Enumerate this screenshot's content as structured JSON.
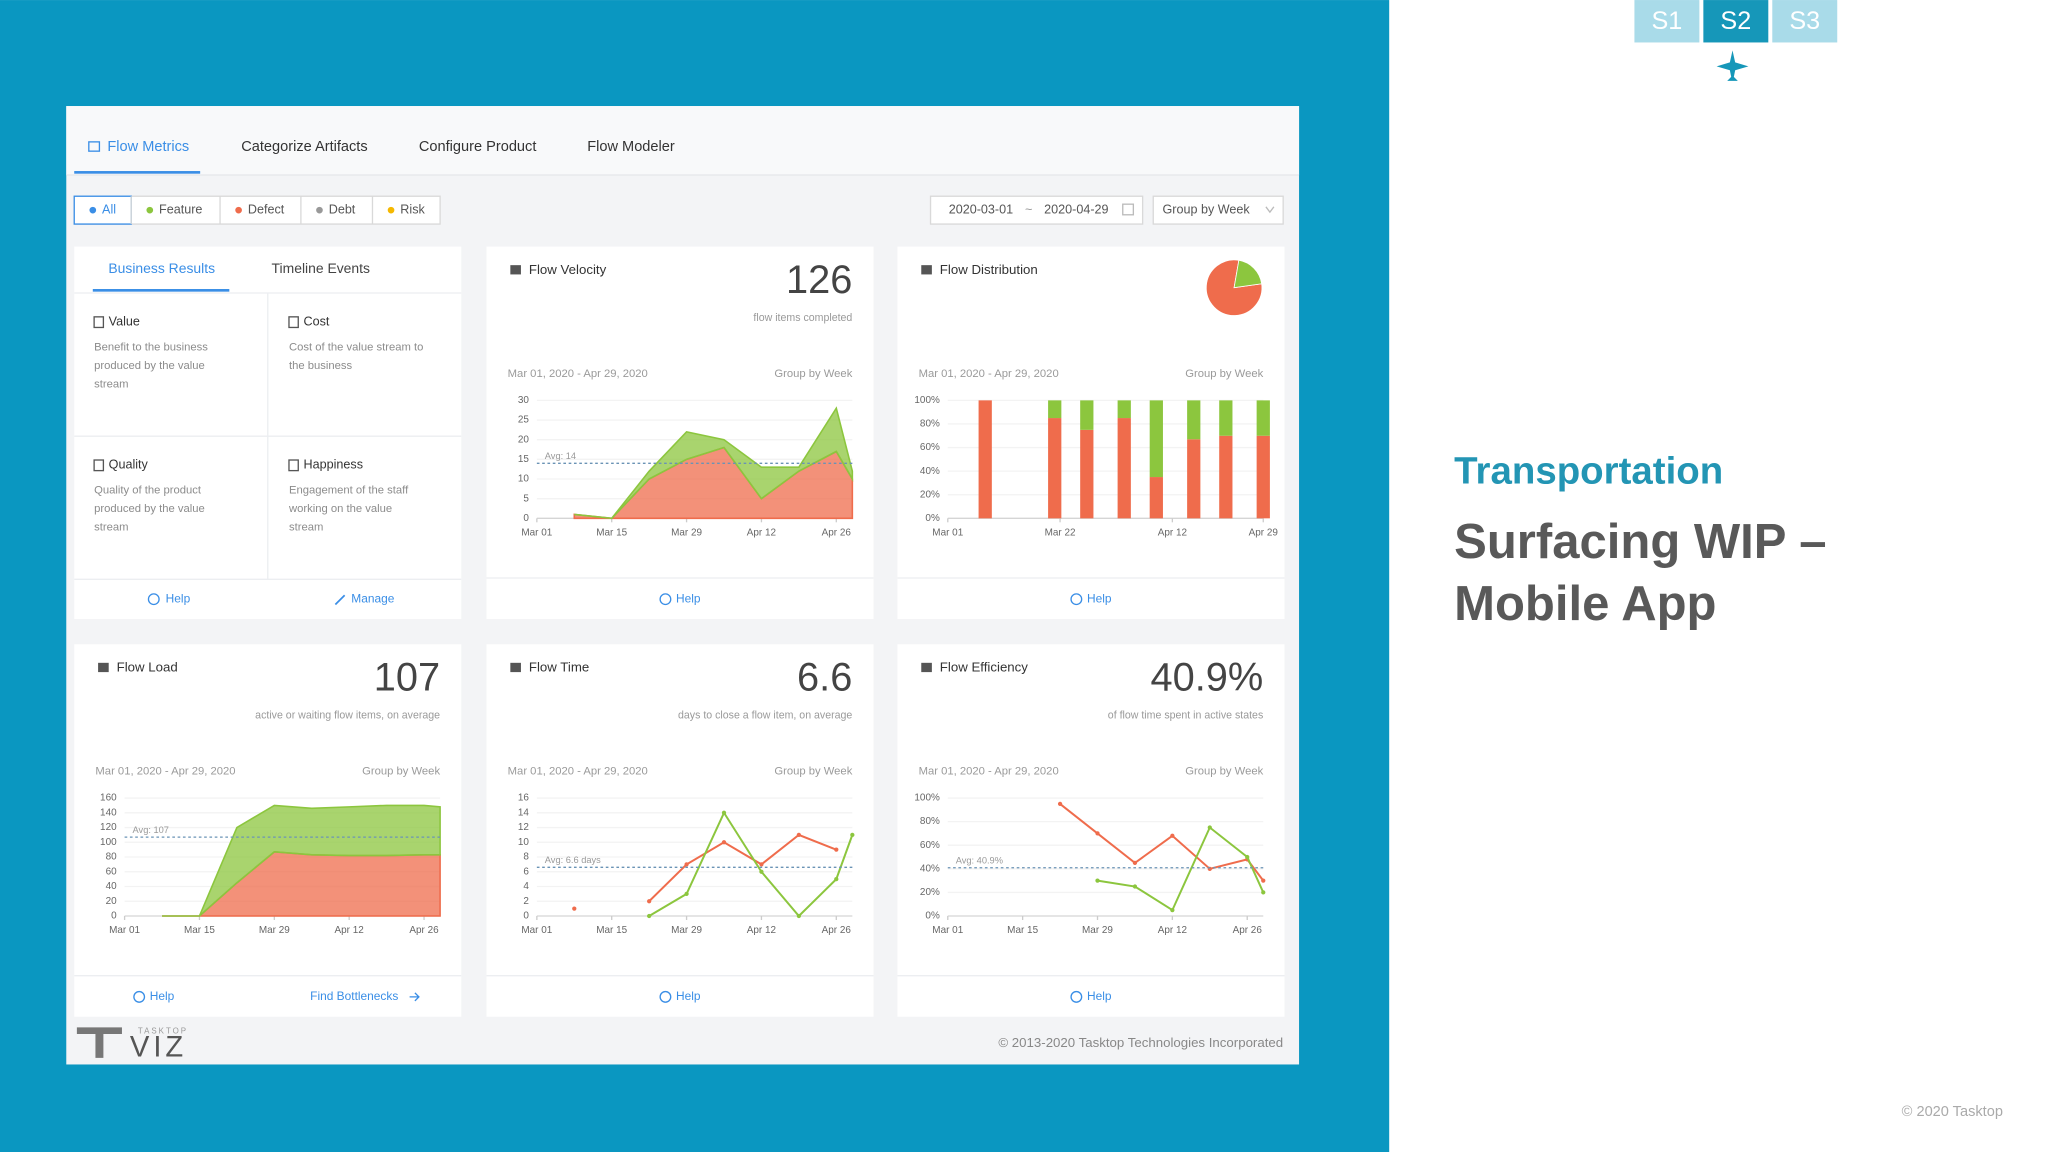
{
  "slide": {
    "tabs": [
      "S1",
      "S2",
      "S3"
    ],
    "section": "Transportation",
    "title_lines": [
      "Surfacing WIP –",
      "Mobile App"
    ],
    "footer": "© 2020 Tasktop"
  },
  "app": {
    "nav": [
      "Flow Metrics",
      "Categorize Artifacts",
      "Configure Product",
      "Flow Modeler"
    ],
    "filters": [
      "All",
      "Feature",
      "Defect",
      "Debt",
      "Risk"
    ],
    "date_from": "2020-03-01",
    "date_sep": "~",
    "date_to": "2020-04-29",
    "group_select": "Group by Week",
    "logo_small": "TASKTOP",
    "logo": "VIZ",
    "copyright": "© 2013-2020 Tasktop Technologies Incorporated"
  },
  "business": {
    "tabs": [
      "Business Results",
      "Timeline Events"
    ],
    "items": [
      {
        "title": "Value",
        "desc": [
          "Benefit to the business",
          "produced by the value",
          "stream"
        ]
      },
      {
        "title": "Cost",
        "desc": [
          "Cost of the value stream to",
          "the business"
        ]
      },
      {
        "title": "Quality",
        "desc": [
          "Quality of the product",
          "produced by the value",
          "stream"
        ]
      },
      {
        "title": "Happiness",
        "desc": [
          "Engagement of the staff",
          "working on the value",
          "stream"
        ]
      }
    ],
    "help": "Help",
    "manage": "Manage"
  },
  "cards": [
    {
      "title": "Flow Velocity",
      "metric": 126,
      "caption": "flow items completed",
      "range": "Mar 01, 2020 - Apr 29, 2020",
      "group": "Group by Week",
      "help": "Help",
      "chart": {
        "type": "area",
        "x": [
          7,
          14,
          21,
          28,
          35,
          42,
          49,
          56,
          59
        ],
        "series": [
          {
            "color": "#ef6c4c",
            "values": [
              1,
              0,
              10,
              15,
              18,
              5,
              12,
              17,
              10
            ]
          },
          {
            "color": "#8cc63e",
            "values": [
              0,
              0,
              2,
              7,
              2,
              8,
              1,
              11,
              2
            ]
          }
        ],
        "xlim": [
          0,
          59
        ],
        "xticks": [
          {
            "value": 0,
            "label": "Mar 01"
          },
          {
            "value": 14,
            "label": "Mar 15"
          },
          {
            "value": 28,
            "label": "Mar 29"
          },
          {
            "value": 42,
            "label": "Apr 12"
          },
          {
            "value": 56,
            "label": "Apr 26"
          }
        ],
        "ylim": [
          0,
          30
        ],
        "yticks": [
          0,
          5,
          10,
          15,
          20,
          25,
          30
        ],
        "avg": 14,
        "avg_label": "Avg: 14"
      }
    },
    {
      "title": "Flow Distribution",
      "pie": {
        "values": [
          80,
          20
        ],
        "colors": [
          "#ef6c4c",
          "#8cc63e"
        ]
      },
      "range": "Mar 01, 2020 - Apr 29, 2020",
      "group": "Group by Week",
      "help": "Help",
      "chart": {
        "type": "bar100",
        "x": [
          7,
          20,
          26,
          33,
          39,
          46,
          52,
          59
        ],
        "series": [
          {
            "color": "#ef6c4c",
            "values": [
              100,
              85,
              75,
              85,
              35,
              67,
              70,
              70
            ]
          },
          {
            "color": "#8cc63e",
            "values": [
              0,
              15,
              25,
              15,
              65,
              33,
              30,
              30
            ]
          }
        ],
        "xlim": [
          0,
          59
        ],
        "xticks": [
          {
            "value": 0,
            "label": "Mar 01"
          },
          {
            "value": 21,
            "label": "Mar 22"
          },
          {
            "value": 42,
            "label": "Apr 12"
          },
          {
            "value": 59,
            "label": "Apr 29"
          }
        ],
        "ylim": [
          0,
          100
        ],
        "yticks": [
          {
            "value": 0,
            "label": "0%"
          },
          {
            "value": 20,
            "label": "20%"
          },
          {
            "value": 40,
            "label": "40%"
          },
          {
            "value": 60,
            "label": "60%"
          },
          {
            "value": 80,
            "label": "80%"
          },
          {
            "value": 100,
            "label": "100%"
          }
        ]
      }
    },
    {
      "title": "Flow Load",
      "metric": 107,
      "caption": "active or waiting flow items, on average",
      "range": "Mar 01, 2020 - Apr 29, 2020",
      "group": "Group by Week",
      "help": "Help",
      "link": "Find Bottlenecks",
      "chart": {
        "type": "area",
        "x": [
          7,
          14,
          21,
          28,
          35,
          42,
          49,
          56,
          59
        ],
        "series": [
          {
            "color": "#ef6c4c",
            "values": [
              0,
              0,
              45,
              87,
              83,
              82,
              82,
              83,
              83
            ]
          },
          {
            "color": "#8cc63e",
            "values": [
              0,
              0,
              75,
              63,
              63,
              66,
              68,
              67,
              65
            ]
          }
        ],
        "xlim": [
          0,
          59
        ],
        "xticks": [
          {
            "value": 0,
            "label": "Mar 01"
          },
          {
            "value": 14,
            "label": "Mar 15"
          },
          {
            "value": 28,
            "label": "Mar 29"
          },
          {
            "value": 42,
            "label": "Apr 12"
          },
          {
            "value": 56,
            "label": "Apr 26"
          }
        ],
        "ylim": [
          0,
          160
        ],
        "yticks": [
          0,
          20,
          40,
          60,
          80,
          100,
          120,
          140,
          160
        ],
        "avg": 107,
        "avg_label": "Avg: 107"
      }
    },
    {
      "title": "Flow Time",
      "metric": 6.6,
      "caption": "days to close a flow item, on average",
      "range": "Mar 01, 2020 - Apr 29, 2020",
      "group": "Group by Week",
      "help": "Help",
      "chart": {
        "type": "line",
        "x": [
          7,
          14,
          21,
          28,
          35,
          42,
          49,
          56,
          59
        ],
        "series": [
          {
            "color": "#ef6c4c",
            "values": [
              1,
              null,
              2,
              7,
              10,
              7,
              11,
              9,
              null
            ]
          },
          {
            "color": "#8cc63e",
            "values": [
              null,
              null,
              0,
              3,
              14,
              6,
              0,
              5,
              11
            ]
          }
        ],
        "xlim": [
          0,
          59
        ],
        "xticks": [
          {
            "value": 0,
            "label": "Mar 01"
          },
          {
            "value": 14,
            "label": "Mar 15"
          },
          {
            "value": 28,
            "label": "Mar 29"
          },
          {
            "value": 42,
            "label": "Apr 12"
          },
          {
            "value": 56,
            "label": "Apr 26"
          }
        ],
        "ylim": [
          0,
          16
        ],
        "yticks": [
          0,
          2,
          4,
          6,
          8,
          10,
          12,
          14,
          16
        ],
        "avg": 6.6,
        "avg_label": "Avg: 6.6 days"
      }
    },
    {
      "title": "Flow Efficiency",
      "metric": "40.9%",
      "caption": "of flow time spent in active states",
      "range": "Mar 01, 2020 - Apr 29, 2020",
      "group": "Group by Week",
      "help": "Help",
      "chart": {
        "type": "line",
        "x": [
          7,
          14,
          21,
          28,
          35,
          42,
          49,
          56,
          59
        ],
        "series": [
          {
            "color": "#ef6c4c",
            "values": [
              null,
              null,
              95,
              70,
              45,
              68,
              40,
              48,
              30
            ]
          },
          {
            "color": "#8cc63e",
            "values": [
              null,
              null,
              null,
              30,
              25,
              5,
              75,
              50,
              20
            ]
          }
        ],
        "xlim": [
          0,
          59
        ],
        "xticks": [
          {
            "value": 0,
            "label": "Mar 01"
          },
          {
            "value": 14,
            "label": "Mar 15"
          },
          {
            "value": 28,
            "label": "Mar 29"
          },
          {
            "value": 42,
            "label": "Apr 12"
          },
          {
            "value": 56,
            "label": "Apr 26"
          }
        ],
        "ylim": [
          0,
          100
        ],
        "yticks": [
          {
            "value": 0,
            "label": "0%"
          },
          {
            "value": 20,
            "label": "20%"
          },
          {
            "value": 40,
            "label": "40%"
          },
          {
            "value": 60,
            "label": "60%"
          },
          {
            "value": 80,
            "label": "80%"
          },
          {
            "value": 100,
            "label": "100%"
          }
        ],
        "avg": 40.9,
        "avg_label": "Avg: 40.9%"
      }
    }
  ]
}
